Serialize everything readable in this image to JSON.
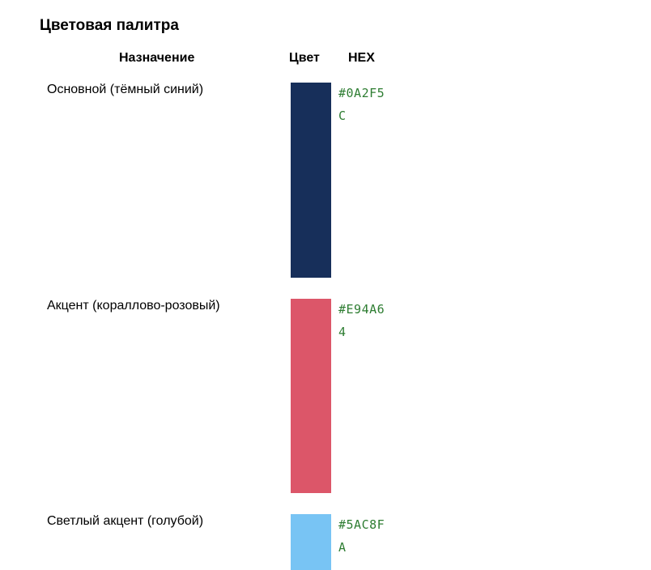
{
  "title": "Цветовая палитра",
  "table": {
    "headers": {
      "purpose": "Назначение",
      "color": "Цвет",
      "hex": "HEX"
    },
    "rows": [
      {
        "purpose": "Основной (тёмный синий)",
        "hex": "#0A2F5C",
        "color": "#172f5a"
      },
      {
        "purpose": "Акцент (кораллово-розовый)",
        "hex": "#E94A64",
        "color": "#dc5669"
      },
      {
        "purpose": "Светлый акцент (голубой)",
        "hex": "#5AC8FA",
        "color": "#78c4f4"
      }
    ]
  }
}
